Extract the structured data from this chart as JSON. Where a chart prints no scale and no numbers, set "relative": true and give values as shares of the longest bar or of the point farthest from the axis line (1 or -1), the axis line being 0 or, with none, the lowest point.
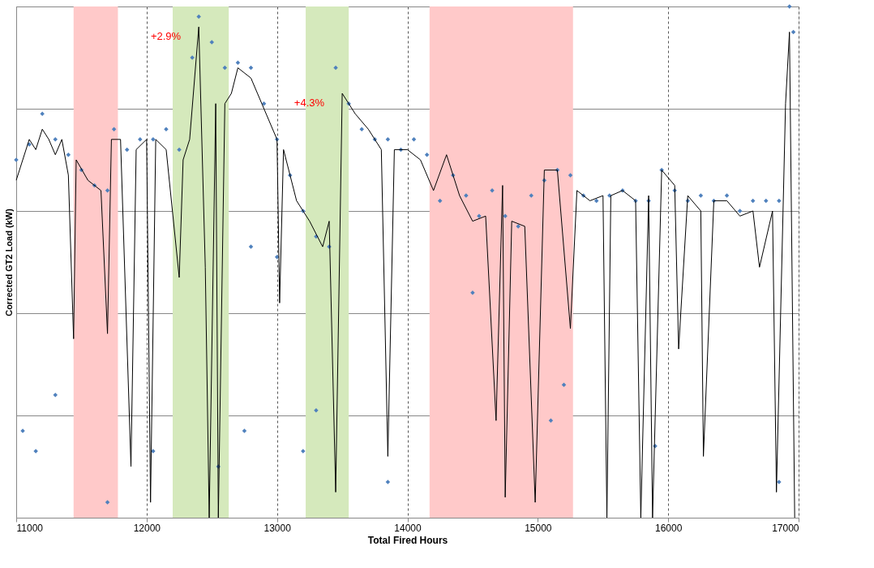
{
  "chart_data": {
    "type": "scatter",
    "xlabel": "Total Fired Hours",
    "ylabel": "Corrected GT2 Load (kW)",
    "relative": true,
    "xlim": [
      11000,
      17000
    ],
    "xticks": [
      11000,
      12000,
      13000,
      14000,
      15000,
      16000,
      17000
    ],
    "grid": true,
    "series": [
      {
        "marker": "diamond",
        "color": "#4f81bd",
        "x": [
          11000,
          11100,
          11200,
          11300,
          11400,
          11500,
          11600,
          11700,
          11750,
          11850,
          11950,
          12050,
          12150,
          12250,
          12350,
          12400,
          12500,
          12600,
          12700,
          12800,
          12900,
          13000,
          13100,
          13200,
          13300,
          13400,
          13450,
          13550,
          13650,
          13750,
          13850,
          13950,
          14050,
          14150,
          14250,
          14350,
          14450,
          14550,
          14650,
          14750,
          14850,
          14950,
          15050,
          15150,
          15250,
          15350,
          15450,
          15550,
          15650,
          15750,
          15850,
          15950,
          16050,
          16150,
          16250,
          16350,
          16450,
          16550,
          16650,
          16750,
          16850,
          16930,
          16960,
          11050,
          11150,
          11300,
          11700,
          12050,
          12550,
          12750,
          13200,
          13300,
          13850,
          15100,
          15200,
          15900,
          16850,
          12800,
          13000,
          14500
        ],
        "values": [
          0.7,
          0.73,
          0.79,
          0.74,
          0.71,
          0.68,
          0.65,
          0.64,
          0.76,
          0.72,
          0.74,
          0.74,
          0.76,
          0.72,
          0.9,
          0.98,
          0.93,
          0.88,
          0.89,
          0.88,
          0.81,
          0.74,
          0.67,
          0.6,
          0.55,
          0.53,
          0.88,
          0.81,
          0.76,
          0.74,
          0.74,
          0.72,
          0.74,
          0.71,
          0.62,
          0.67,
          0.63,
          0.59,
          0.64,
          0.59,
          0.57,
          0.63,
          0.66,
          0.68,
          0.67,
          0.63,
          0.62,
          0.63,
          0.64,
          0.62,
          0.62,
          0.68,
          0.64,
          0.62,
          0.63,
          0.62,
          0.63,
          0.6,
          0.62,
          0.62,
          0.62,
          1.0,
          0.95,
          0.17,
          0.13,
          0.24,
          0.03,
          0.13,
          0.1,
          0.17,
          0.13,
          0.21,
          0.07,
          0.19,
          0.26,
          0.14,
          0.07,
          0.53,
          0.51,
          0.44
        ]
      },
      {
        "type": "line",
        "marker": "none",
        "line_style": "solid",
        "color": "#000000",
        "x": [
          11000,
          11100,
          11150,
          11200,
          11250,
          11300,
          11350,
          11400,
          11440,
          11460,
          11550,
          11650,
          11700,
          11730,
          11800,
          11880,
          11920,
          12000,
          12030,
          12070,
          12150,
          12250,
          12280,
          12330,
          12400,
          12450,
          12480,
          12530,
          12550,
          12600,
          12650,
          12700,
          12800,
          12900,
          13000,
          13020,
          13050,
          13150,
          13250,
          13350,
          13400,
          13450,
          13500,
          13600,
          13700,
          13800,
          13850,
          13900,
          14000,
          14100,
          14200,
          14300,
          14400,
          14500,
          14600,
          14680,
          14730,
          14750,
          14800,
          14900,
          14980,
          15050,
          15150,
          15250,
          15300,
          15400,
          15500,
          15530,
          15560,
          15650,
          15750,
          15790,
          15850,
          15880,
          15950,
          16050,
          16080,
          16150,
          16250,
          16270,
          16350,
          16450,
          16550,
          16650,
          16700,
          16800,
          16830,
          16900,
          16930,
          16970
        ],
        "values": [
          0.66,
          0.74,
          0.72,
          0.76,
          0.74,
          0.71,
          0.74,
          0.67,
          0.35,
          0.7,
          0.66,
          0.64,
          0.36,
          0.74,
          0.74,
          0.1,
          0.72,
          0.74,
          0.03,
          0.74,
          0.72,
          0.47,
          0.7,
          0.74,
          0.96,
          0.49,
          0.0,
          0.81,
          0.0,
          0.81,
          0.83,
          0.88,
          0.86,
          0.8,
          0.74,
          0.42,
          0.72,
          0.62,
          0.58,
          0.53,
          0.58,
          0.05,
          0.83,
          0.79,
          0.76,
          0.72,
          0.12,
          0.72,
          0.72,
          0.7,
          0.64,
          0.71,
          0.63,
          0.58,
          0.59,
          0.19,
          0.65,
          0.04,
          0.58,
          0.57,
          0.03,
          0.68,
          0.68,
          0.37,
          0.64,
          0.62,
          0.63,
          0.0,
          0.63,
          0.64,
          0.62,
          0.0,
          0.63,
          0.0,
          0.68,
          0.65,
          0.33,
          0.63,
          0.6,
          0.12,
          0.62,
          0.62,
          0.59,
          0.6,
          0.49,
          0.6,
          0.05,
          0.81,
          0.95,
          0.0
        ]
      }
    ],
    "bands": [
      {
        "axis": "x",
        "from": 11440,
        "to": 11780,
        "color": "#ffc9c9"
      },
      {
        "axis": "x",
        "from": 12200,
        "to": 12630,
        "color": "#d5e9bc"
      },
      {
        "axis": "x",
        "from": 13220,
        "to": 13550,
        "color": "#d5e9bc"
      },
      {
        "axis": "x",
        "from": 14170,
        "to": 15270,
        "color": "#ffc9c9"
      }
    ],
    "annotations": [
      {
        "text": "+2.9%",
        "x": 12400,
        "y": 0.96
      },
      {
        "text": "+4.3%",
        "x": 13500,
        "y": 0.83
      }
    ]
  }
}
